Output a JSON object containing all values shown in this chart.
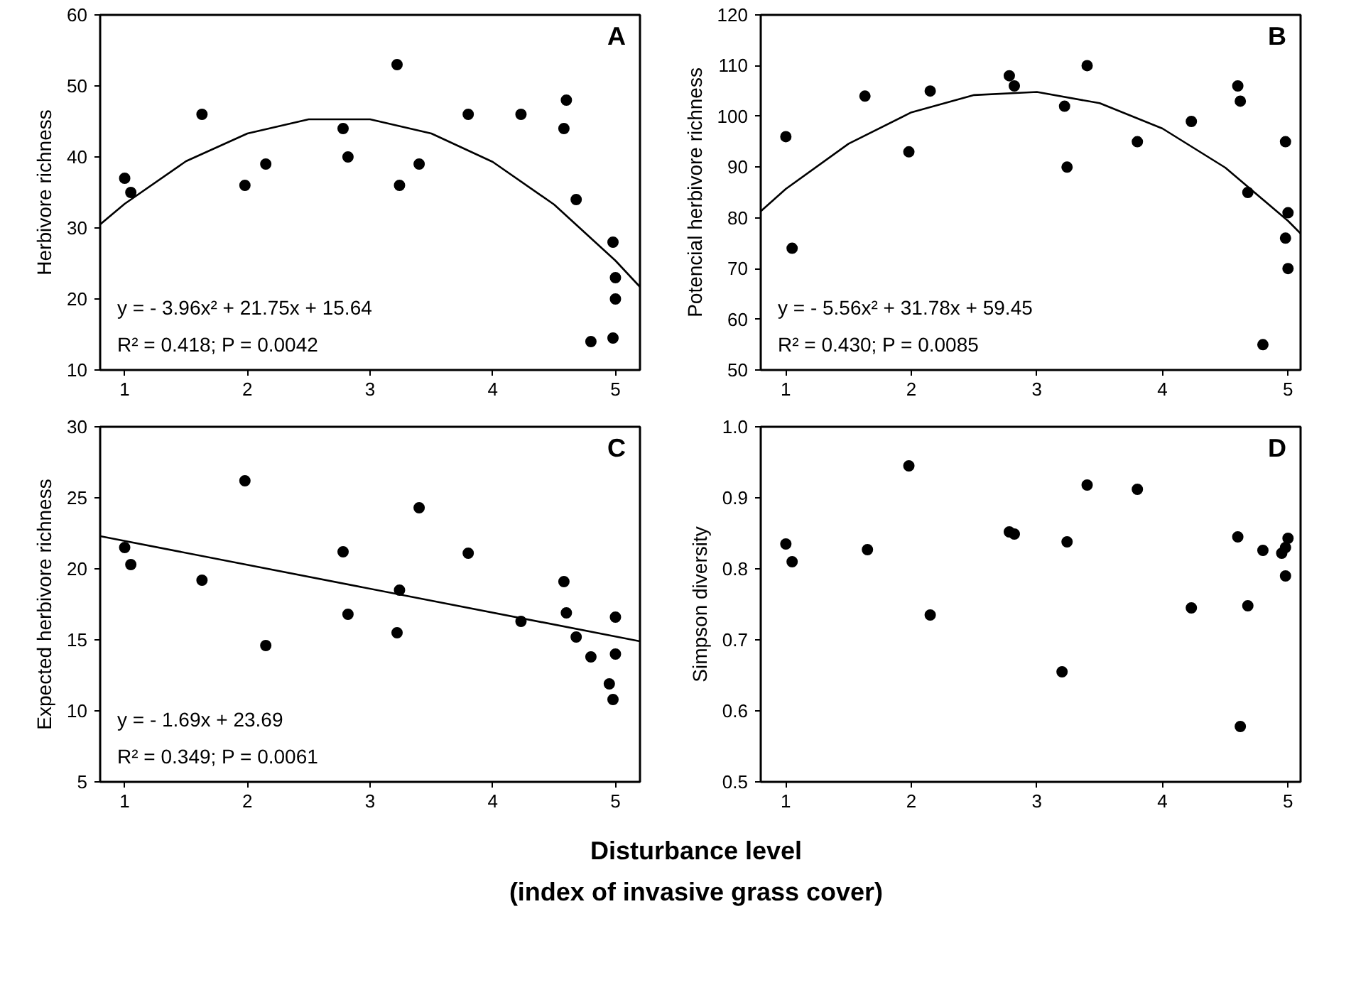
{
  "chart_data": [
    {
      "type": "scatter",
      "ylabel": "Herbivore richness",
      "xlim": [
        0.8,
        5.2
      ],
      "ylim": [
        10,
        60
      ],
      "xticks": [
        1,
        2,
        3,
        4,
        5
      ],
      "yticks": [
        10,
        20,
        30,
        40,
        50,
        60
      ],
      "grid": false,
      "marker": "circle",
      "annotations": [
        "A",
        "y = - 3.96x² + 21.75x + 15.64",
        "R² = 0.418; P = 0.0042"
      ],
      "series": [
        {
          "color": "#000000",
          "x": [
            1.0,
            1.05,
            1.63,
            1.98,
            2.15,
            2.78,
            2.82,
            3.22,
            3.24,
            3.4,
            3.8,
            4.23,
            4.6,
            4.58,
            4.68,
            4.98,
            5.0,
            5.0,
            4.8,
            4.98
          ],
          "values": [
            37,
            35,
            46,
            36,
            39,
            44,
            40,
            53,
            36,
            39,
            46,
            46,
            48,
            44,
            34,
            28,
            23,
            20,
            14,
            14.5
          ]
        },
        {
          "type": "line",
          "color": "#000000",
          "marker": "none",
          "line_style": "solid",
          "x": [
            0.8,
            1,
            1.5,
            2,
            2.5,
            3,
            3.5,
            4,
            4.5,
            5,
            5.2
          ],
          "values": [
            30.5,
            33.4,
            39.4,
            43.3,
            45.3,
            45.3,
            43.3,
            39.3,
            33.3,
            25.4,
            21.7
          ]
        }
      ]
    },
    {
      "type": "scatter",
      "ylabel": "Potencial herbivore richness",
      "xlim": [
        0.8,
        5.1
      ],
      "ylim": [
        50,
        120
      ],
      "xticks": [
        1,
        2,
        3,
        4,
        5
      ],
      "yticks": [
        50,
        60,
        70,
        80,
        90,
        100,
        110,
        120
      ],
      "grid": false,
      "marker": "circle",
      "annotations": [
        "B",
        "y = - 5.56x² + 31.78x + 59.45",
        "R² = 0.430; P = 0.0085"
      ],
      "series": [
        {
          "color": "#000000",
          "x": [
            1.0,
            1.05,
            1.63,
            1.98,
            2.15,
            2.78,
            2.82,
            3.22,
            3.24,
            3.4,
            3.8,
            4.23,
            4.6,
            4.62,
            4.68,
            4.8,
            4.98,
            5.0,
            4.98,
            5.0
          ],
          "values": [
            96,
            74,
            104,
            93,
            105,
            108,
            106,
            102,
            90,
            110,
            95,
            99,
            106,
            103,
            85,
            55,
            95,
            81,
            76,
            70
          ]
        },
        {
          "type": "line",
          "color": "#000000",
          "marker": "none",
          "line_style": "solid",
          "x": [
            0.8,
            1,
            1.5,
            2,
            2.5,
            3,
            3.5,
            4,
            4.5,
            5,
            5.1
          ],
          "values": [
            81.3,
            85.7,
            94.6,
            100.8,
            104.2,
            104.8,
            102.6,
            97.6,
            89.9,
            79.4,
            76.9
          ]
        }
      ]
    },
    {
      "type": "scatter",
      "ylabel": "Expected herbivore richness",
      "xlabel": "Disturbance level\n(index of invasive grass cover)",
      "xlim": [
        0.8,
        5.2
      ],
      "ylim": [
        5,
        30
      ],
      "xticks": [
        1,
        2,
        3,
        4,
        5
      ],
      "yticks": [
        5,
        10,
        15,
        20,
        25,
        30
      ],
      "grid": false,
      "marker": "circle",
      "annotations": [
        "C",
        "y = - 1.69x + 23.69",
        "R² = 0.349; P = 0.0061"
      ],
      "series": [
        {
          "color": "#000000",
          "x": [
            1.0,
            1.05,
            1.63,
            1.98,
            2.15,
            2.78,
            2.82,
            3.22,
            3.24,
            3.4,
            3.8,
            4.23,
            4.58,
            4.6,
            4.68,
            4.8,
            4.95,
            4.98,
            5.0,
            5.0
          ],
          "values": [
            21.5,
            20.3,
            19.2,
            26.2,
            14.6,
            21.2,
            16.8,
            15.5,
            18.5,
            24.3,
            21.1,
            16.3,
            19.1,
            16.9,
            15.2,
            13.8,
            11.9,
            10.8,
            16.6,
            14.0
          ]
        },
        {
          "type": "line",
          "color": "#000000",
          "marker": "none",
          "line_style": "solid",
          "x": [
            0.8,
            5.2
          ],
          "values": [
            22.3,
            14.9
          ]
        }
      ]
    },
    {
      "type": "scatter",
      "ylabel": "Simpson diversity",
      "xlim": [
        0.8,
        5.1
      ],
      "ylim": [
        0.5,
        1.0
      ],
      "xticks": [
        1,
        2,
        3,
        4,
        5
      ],
      "yticks": [
        {
          "value": 0.5,
          "label": "0.5"
        },
        {
          "value": 0.6,
          "label": "0.6"
        },
        {
          "value": 0.7,
          "label": "0.7"
        },
        {
          "value": 0.8,
          "label": "0.8"
        },
        {
          "value": 0.9,
          "label": "0.9"
        },
        {
          "value": 1.0,
          "label": "1.0"
        }
      ],
      "grid": false,
      "marker": "circle",
      "annotations": [
        "D"
      ],
      "series": [
        {
          "color": "#000000",
          "x": [
            1.0,
            1.05,
            1.65,
            1.98,
            2.15,
            2.78,
            2.82,
            3.2,
            3.24,
            3.4,
            3.8,
            4.23,
            4.6,
            4.62,
            4.68,
            4.8,
            4.95,
            4.98,
            5.0,
            4.98
          ],
          "values": [
            0.835,
            0.81,
            0.827,
            0.945,
            0.735,
            0.852,
            0.849,
            0.655,
            0.838,
            0.918,
            0.912,
            0.745,
            0.845,
            0.578,
            0.748,
            0.826,
            0.822,
            0.79,
            0.843,
            0.83
          ]
        }
      ]
    }
  ]
}
